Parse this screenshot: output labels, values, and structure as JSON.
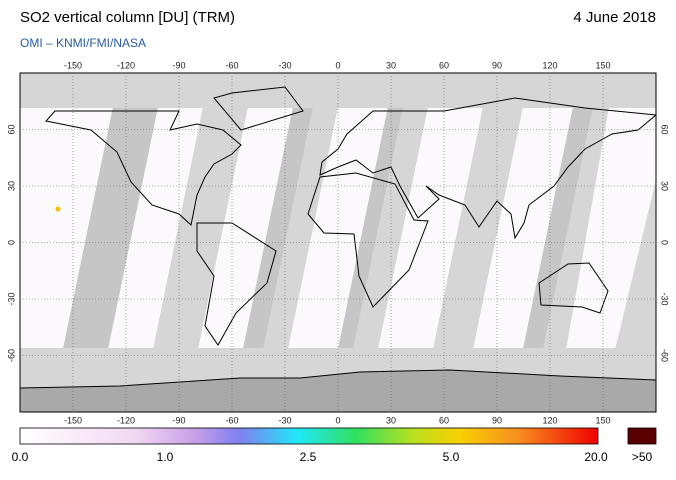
{
  "header": {
    "title": "SO2 vertical column [DU] (TRM)",
    "date": "4 June 2018",
    "credit": "OMI  –  KNMI/FMI/NASA"
  },
  "map": {
    "lon_ticks": [
      -150,
      -120,
      -90,
      -60,
      -30,
      0,
      30,
      60,
      90,
      120,
      150
    ],
    "lat_ticks": [
      60,
      30,
      0,
      -30,
      -60
    ]
  },
  "colorbar": {
    "labels": [
      "0.0",
      "1.0",
      "2.5",
      "5.0",
      "20.0"
    ],
    "over_label": ">50"
  }
}
